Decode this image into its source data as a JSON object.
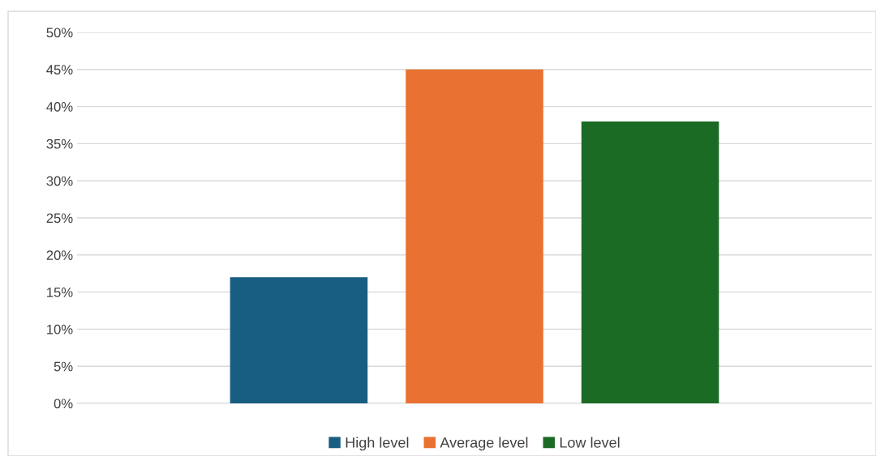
{
  "chart_data": {
    "type": "bar",
    "categories": [
      null
    ],
    "series": [
      {
        "name": "High level",
        "color": "#175e82",
        "values": [
          17
        ]
      },
      {
        "name": "Average level",
        "color": "#e97132",
        "values": [
          45
        ]
      },
      {
        "name": "Low level",
        "color": "#1b6b25",
        "values": [
          38
        ]
      }
    ],
    "ylim": [
      0,
      50
    ],
    "yticks": [
      {
        "value": 0,
        "label": "0%"
      },
      {
        "value": 5,
        "label": "5%"
      },
      {
        "value": 10,
        "label": "10%"
      },
      {
        "value": 15,
        "label": "15%"
      },
      {
        "value": 20,
        "label": "20%"
      },
      {
        "value": 25,
        "label": "25%"
      },
      {
        "value": 30,
        "label": "30%"
      },
      {
        "value": 35,
        "label": "35%"
      },
      {
        "value": 40,
        "label": "40%"
      },
      {
        "value": 45,
        "label": "45%"
      },
      {
        "value": 50,
        "label": "50%"
      }
    ],
    "grid": "y",
    "legend": "bottom"
  }
}
